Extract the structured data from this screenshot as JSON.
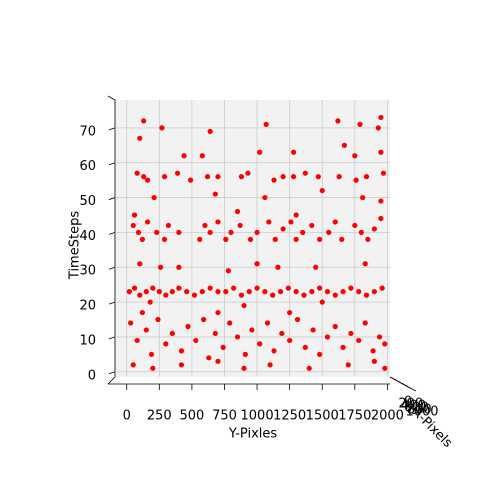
{
  "chart_data": {
    "type": "scatter",
    "xlabel": "Y-Pixles",
    "ylabel": "TimeSteps",
    "zlabel": "X-Pixels",
    "x": [
      130,
      270,
      640,
      1070,
      1620,
      1790,
      1950,
      1930,
      100,
      440,
      580,
      1020,
      1280,
      1670,
      1950,
      1750,
      80,
      130,
      160,
      290,
      390,
      490,
      620,
      700,
      880,
      930,
      1130,
      1200,
      1280,
      1370,
      1470,
      1630,
      1760,
      1840,
      1970,
      210,
      680,
      1060,
      1500,
      1810,
      1950,
      50,
      90,
      120,
      160,
      230,
      290,
      320,
      400,
      560,
      600,
      640,
      700,
      760,
      800,
      870,
      950,
      1000,
      1090,
      1140,
      1200,
      1260,
      1300,
      1350,
      1420,
      1480,
      1550,
      1600,
      1650,
      1750,
      1800,
      1850,
      1900,
      1950,
      60,
      850,
      1300,
      100,
      260,
      400,
      780,
      1000,
      1160,
      1450,
      1830,
      20,
      60,
      100,
      150,
      200,
      250,
      300,
      350,
      400,
      460,
      520,
      580,
      640,
      700,
      760,
      820,
      880,
      940,
      1000,
      1060,
      1120,
      1180,
      1240,
      1300,
      1360,
      1420,
      1480,
      1540,
      1600,
      1660,
      1720,
      1780,
      1840,
      1900,
      1960,
      180,
      900,
      1500,
      30,
      80,
      150,
      190,
      240,
      300,
      350,
      420,
      470,
      530,
      590,
      630,
      680,
      740,
      790,
      850,
      910,
      960,
      1020,
      1080,
      1130,
      1190,
      1250,
      1310,
      1370,
      1430,
      1480,
      1540,
      1600,
      1660,
      1720,
      1780,
      1830,
      1890,
      1940,
      1980,
      120,
      700,
      1250,
      50,
      200,
      420,
      700,
      900,
      1100,
      1400,
      1700,
      1900,
      1980
    ],
    "values": [
      72,
      70,
      69,
      71,
      72,
      71,
      73,
      70,
      67,
      62,
      62,
      63,
      63,
      65,
      63,
      62,
      57,
      56,
      55,
      56,
      57,
      55,
      56,
      56,
      56,
      57,
      55,
      56,
      56,
      57,
      56,
      56,
      55,
      56,
      57,
      50,
      51,
      50,
      52,
      50,
      49,
      42,
      40,
      38,
      43,
      40,
      38,
      42,
      40,
      38,
      42,
      40,
      43,
      38,
      40,
      42,
      38,
      40,
      43,
      38,
      41,
      43,
      38,
      40,
      42,
      38,
      40,
      43,
      38,
      42,
      40,
      38,
      41,
      44,
      45,
      46,
      45,
      31,
      30,
      30,
      29,
      31,
      30,
      30,
      31,
      23,
      24,
      22,
      23,
      24,
      23,
      22,
      23,
      24,
      23,
      22,
      23,
      24,
      23,
      23,
      24,
      22,
      23,
      24,
      23,
      22,
      23,
      24,
      23,
      22,
      23,
      24,
      23,
      22,
      23,
      24,
      23,
      22,
      23,
      24,
      20,
      19,
      20,
      14,
      9,
      12,
      5,
      15,
      8,
      11,
      6,
      13,
      9,
      15,
      4,
      11,
      7,
      14,
      10,
      5,
      12,
      8,
      14,
      6,
      11,
      9,
      15,
      7,
      12,
      5,
      10,
      13,
      7,
      11,
      9,
      14,
      6,
      10,
      8,
      17,
      17,
      17,
      2,
      1,
      2,
      3,
      1,
      2,
      1,
      2,
      3,
      1
    ],
    "color": "#ff0000",
    "xlim": [
      -90,
      2020
    ],
    "ylim": [
      -1.5,
      78
    ],
    "xticks": [
      0,
      250,
      500,
      750,
      1000,
      1250,
      1500,
      1750,
      2000
    ],
    "yticks": [
      0,
      10,
      20,
      30,
      40,
      50,
      60,
      70
    ],
    "zticks": [
      0,
      200,
      400,
      600,
      800,
      1000
    ],
    "grid": true
  }
}
